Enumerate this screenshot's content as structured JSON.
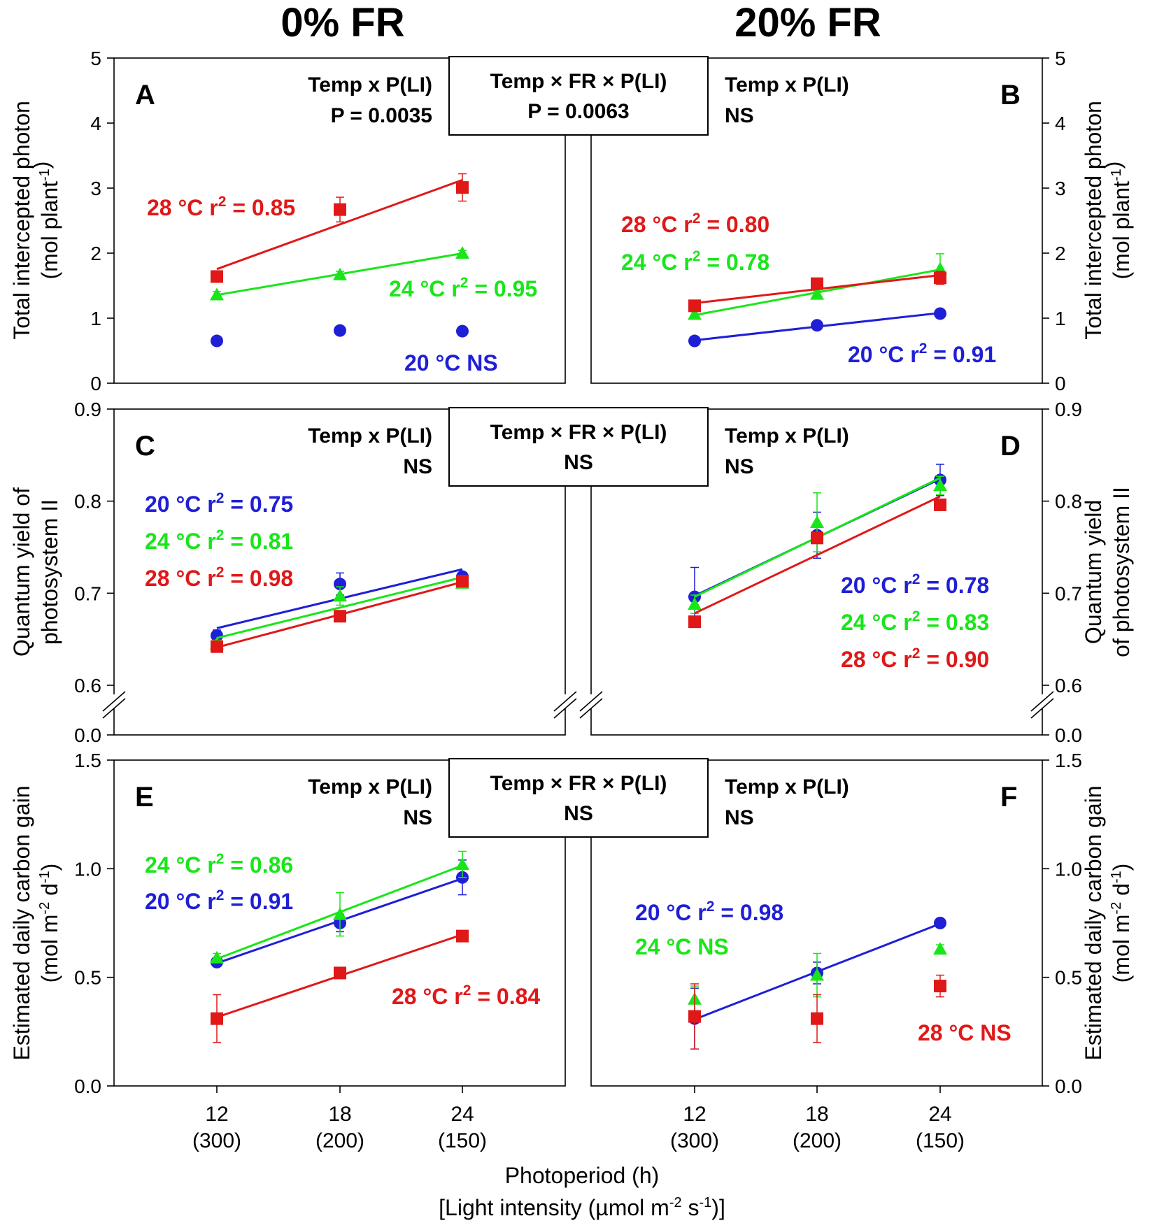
{
  "figure": {
    "col_titles": [
      "0% FR",
      "20% FR"
    ],
    "x_label": "Photoperiod (h)",
    "x_label_2": "[Light intensity (µmol m",
    "x_label_2_sup1": "-2",
    "x_label_2_mid": " s",
    "x_label_2_sup2": "-1",
    "x_label_2_end": ")]",
    "x_tick_top": [
      "12",
      "18",
      "24"
    ],
    "x_tick_bottom": [
      "(300)",
      "(200)",
      "(150)"
    ],
    "interaction_boxes": [
      {
        "label": "Temp × FR × P(LI)",
        "value": "P = 0.0063"
      },
      {
        "label": "Temp × FR × P(LI)",
        "value": "NS"
      },
      {
        "label": "Temp × FR × P(LI)",
        "value": "NS"
      }
    ],
    "row_ylabels": [
      {
        "line1": "Total intercepted photon",
        "line2": "(mol plant",
        "sup": "-1",
        "end": ")"
      },
      {
        "line1": "Quantum yield of",
        "line2": "photosystem II",
        "sup": "",
        "end": ""
      },
      {
        "line1": "Estimated daily carbon gain",
        "line2": "(mol m",
        "sup": "-2",
        "mid": " d",
        "sup2": "-1",
        "end": ")"
      }
    ],
    "right_ylabels": [
      {
        "line1": "Total intercepted photon",
        "line2": "(mol plant",
        "sup": "-1",
        "end": ")"
      },
      {
        "line1": "Quantum yield",
        "line2": "of photosystem II",
        "sup": "",
        "end": ""
      },
      {
        "line1": "Estimated daily carbon gain",
        "line2": "(mol m",
        "sup": "-2",
        "mid": " d",
        "sup2": "-1",
        "end": ")"
      }
    ],
    "y_ticks": [
      [
        "0",
        "1",
        "2",
        "3",
        "4",
        "5"
      ],
      [
        "0.0",
        "0.6",
        "0.7",
        "0.8",
        "0.9"
      ],
      [
        "0.0",
        "0.5",
        "1.0",
        "1.5"
      ]
    ]
  },
  "colors": {
    "20C": "#1f1fd6",
    "24C": "#19e619",
    "28C": "#e01818",
    "axis": "#000000"
  },
  "chart_data": [
    {
      "panel": "A",
      "type": "scatter",
      "fr": "0% FR",
      "ylabel": "Total intercepted photon (mol plant-1)",
      "ylim": [
        0,
        5
      ],
      "x": [
        12,
        18,
        24
      ],
      "x_secondary": [
        300,
        200,
        150
      ],
      "interaction": {
        "label": "Temp x P(LI)",
        "value": "P = 0.0035"
      },
      "series": [
        {
          "name": "20 °C",
          "marker": "circle",
          "values": [
            0.65,
            0.81,
            0.8
          ],
          "errors": [
            0.03,
            0.03,
            0.03
          ],
          "fit": false,
          "label": "20 °C  NS"
        },
        {
          "name": "24 °C",
          "marker": "triangle",
          "values": [
            1.36,
            1.67,
            2.0
          ],
          "errors": [
            0.05,
            0.05,
            0.04
          ],
          "fit": true,
          "label": "24 °C  r2 = 0.95"
        },
        {
          "name": "28 °C",
          "marker": "square",
          "values": [
            1.64,
            2.67,
            3.01
          ],
          "errors": [
            0.07,
            0.19,
            0.21
          ],
          "fit": true,
          "label": "28 °C  r2 = 0.85"
        }
      ]
    },
    {
      "panel": "B",
      "type": "scatter",
      "fr": "20% FR",
      "ylabel": "Total intercepted photon (mol plant-1)",
      "ylim": [
        0,
        5
      ],
      "x": [
        12,
        18,
        24
      ],
      "x_secondary": [
        300,
        200,
        150
      ],
      "interaction": {
        "label": "Temp x P(LI)",
        "value": "NS"
      },
      "series": [
        {
          "name": "20 °C",
          "marker": "circle",
          "values": [
            0.65,
            0.89,
            1.07
          ],
          "errors": [
            0.03,
            0.04,
            0.05
          ],
          "fit": true,
          "label": "20 °C  r2 = 0.91"
        },
        {
          "name": "24 °C",
          "marker": "triangle",
          "values": [
            1.06,
            1.37,
            1.76
          ],
          "errors": [
            0.04,
            0.05,
            0.23
          ],
          "fit": true,
          "label": "24 °C  r2 = 0.78"
        },
        {
          "name": "28 °C",
          "marker": "square",
          "values": [
            1.19,
            1.53,
            1.62
          ],
          "errors": [
            0.05,
            0.05,
            0.1
          ],
          "fit": true,
          "label": "28 °C  r2 = 0.80"
        }
      ]
    },
    {
      "panel": "C",
      "type": "scatter",
      "fr": "0% FR",
      "ylabel": "Quantum yield of photosystem II",
      "ylim": [
        0.6,
        0.9
      ],
      "axis_break": true,
      "x": [
        12,
        18,
        24
      ],
      "x_secondary": [
        300,
        200,
        150
      ],
      "interaction": {
        "label": "Temp x P(LI)",
        "value": "NS"
      },
      "series": [
        {
          "name": "20 °C",
          "marker": "circle",
          "values": [
            0.654,
            0.71,
            0.718
          ],
          "errors": [
            0.006,
            0.012,
            0.004
          ],
          "fit": true,
          "label": "20 °C  r2 = 0.75"
        },
        {
          "name": "24 °C",
          "marker": "triangle",
          "values": [
            0.645,
            0.697,
            0.711
          ],
          "errors": [
            0.004,
            0.01,
            0.004
          ],
          "fit": true,
          "label": "24 °C  r2 = 0.81"
        },
        {
          "name": "28 °C",
          "marker": "square",
          "values": [
            0.642,
            0.675,
            0.713
          ],
          "errors": [
            0.004,
            0.004,
            0.004
          ],
          "fit": true,
          "label": "28 °C  r2 = 0.98"
        }
      ]
    },
    {
      "panel": "D",
      "type": "scatter",
      "fr": "20% FR",
      "ylabel": "Quantum yield of photosystem II",
      "ylim": [
        0.6,
        0.9
      ],
      "axis_break": true,
      "x": [
        12,
        18,
        24
      ],
      "x_secondary": [
        300,
        200,
        150
      ],
      "interaction": {
        "label": "Temp x P(LI)",
        "value": "NS"
      },
      "series": [
        {
          "name": "20 °C",
          "marker": "circle",
          "values": [
            0.696,
            0.763,
            0.823
          ],
          "errors": [
            0.032,
            0.025,
            0.017
          ],
          "fit": true,
          "label": "20 °C  r2 = 0.78"
        },
        {
          "name": "24 °C",
          "marker": "triangle",
          "values": [
            0.688,
            0.777,
            0.817
          ],
          "errors": [
            0.01,
            0.032,
            0.01
          ],
          "fit": true,
          "label": "24 °C  r2 = 0.83"
        },
        {
          "name": "28 °C",
          "marker": "square",
          "values": [
            0.669,
            0.76,
            0.796
          ],
          "errors": [
            0.006,
            0.006,
            0.004
          ],
          "fit": true,
          "label": "28 °C  r2 = 0.90"
        }
      ]
    },
    {
      "panel": "E",
      "type": "scatter",
      "fr": "0% FR",
      "ylabel": "Estimated daily carbon gain (mol m-2 d-1)",
      "ylim": [
        0,
        1.5
      ],
      "x": [
        12,
        18,
        24
      ],
      "x_secondary": [
        300,
        200,
        150
      ],
      "interaction": {
        "label": "Temp x P(LI)",
        "value": "NS"
      },
      "series": [
        {
          "name": "20 °C",
          "marker": "circle",
          "values": [
            0.57,
            0.75,
            0.96
          ],
          "errors": [
            0.02,
            0.04,
            0.08
          ],
          "fit": true,
          "label": "20 °C  r2 = 0.91"
        },
        {
          "name": "24 °C",
          "marker": "triangle",
          "values": [
            0.59,
            0.79,
            1.02
          ],
          "errors": [
            0.02,
            0.1,
            0.06
          ],
          "fit": true,
          "label": "24 °C  r2 = 0.86"
        },
        {
          "name": "28 °C",
          "marker": "square",
          "values": [
            0.31,
            0.52,
            0.69
          ],
          "errors": [
            0.11,
            0.02,
            0.02
          ],
          "fit": true,
          "label": "28 °C  r2 = 0.84"
        }
      ]
    },
    {
      "panel": "F",
      "type": "scatter",
      "fr": "20% FR",
      "ylabel": "Estimated daily carbon gain (mol m-2 d-1)",
      "ylim": [
        0,
        1.5
      ],
      "x": [
        12,
        18,
        24
      ],
      "x_secondary": [
        300,
        200,
        150
      ],
      "interaction": {
        "label": "Temp x P(LI)",
        "value": "NS"
      },
      "series": [
        {
          "name": "20 °C",
          "marker": "circle",
          "values": [
            0.31,
            0.52,
            0.75
          ],
          "errors": [
            0.14,
            0.05,
            0.02
          ],
          "fit": true,
          "label": "20 °C  r2 = 0.98"
        },
        {
          "name": "24 °C",
          "marker": "triangle",
          "values": [
            0.4,
            0.51,
            0.63
          ],
          "errors": [
            0.06,
            0.1,
            0.02
          ],
          "fit": false,
          "label": "24 °C  NS"
        },
        {
          "name": "28 °C",
          "marker": "square",
          "values": [
            0.32,
            0.31,
            0.46
          ],
          "errors": [
            0.15,
            0.11,
            0.05
          ],
          "fit": false,
          "label": "28 °C  NS"
        }
      ]
    }
  ]
}
